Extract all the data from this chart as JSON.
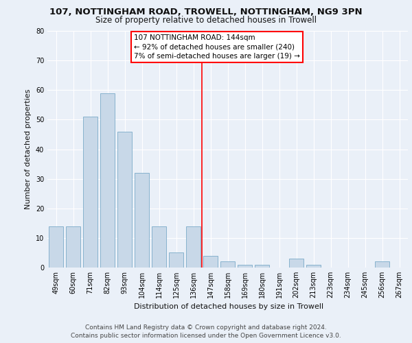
{
  "title1": "107, NOTTINGHAM ROAD, TROWELL, NOTTINGHAM, NG9 3PN",
  "title2": "Size of property relative to detached houses in Trowell",
  "xlabel": "Distribution of detached houses by size in Trowell",
  "ylabel": "Number of detached properties",
  "categories": [
    "49sqm",
    "60sqm",
    "71sqm",
    "82sqm",
    "93sqm",
    "104sqm",
    "114sqm",
    "125sqm",
    "136sqm",
    "147sqm",
    "158sqm",
    "169sqm",
    "180sqm",
    "191sqm",
    "202sqm",
    "213sqm",
    "223sqm",
    "234sqm",
    "245sqm",
    "256sqm",
    "267sqm"
  ],
  "values": [
    14,
    14,
    51,
    59,
    46,
    32,
    14,
    5,
    14,
    4,
    2,
    1,
    1,
    0,
    3,
    1,
    0,
    0,
    0,
    2,
    0
  ],
  "bar_color": "#c8d8e8",
  "bar_edgecolor": "#7aaac8",
  "vline_x_index": 9,
  "annotation_line1": "107 NOTTINGHAM ROAD: 144sqm",
  "annotation_line2": "← 92% of detached houses are smaller (240)",
  "annotation_line3": "7% of semi-detached houses are larger (19) →",
  "ylim": [
    0,
    80
  ],
  "yticks": [
    0,
    10,
    20,
    30,
    40,
    50,
    60,
    70,
    80
  ],
  "background_color": "#eaf0f8",
  "footer": "Contains HM Land Registry data © Crown copyright and database right 2024.\nContains public sector information licensed under the Open Government Licence v3.0.",
  "title1_fontsize": 9.5,
  "title2_fontsize": 8.5,
  "xlabel_fontsize": 8,
  "ylabel_fontsize": 8,
  "tick_fontsize": 7,
  "annotation_fontsize": 7.5,
  "footer_fontsize": 6.5
}
